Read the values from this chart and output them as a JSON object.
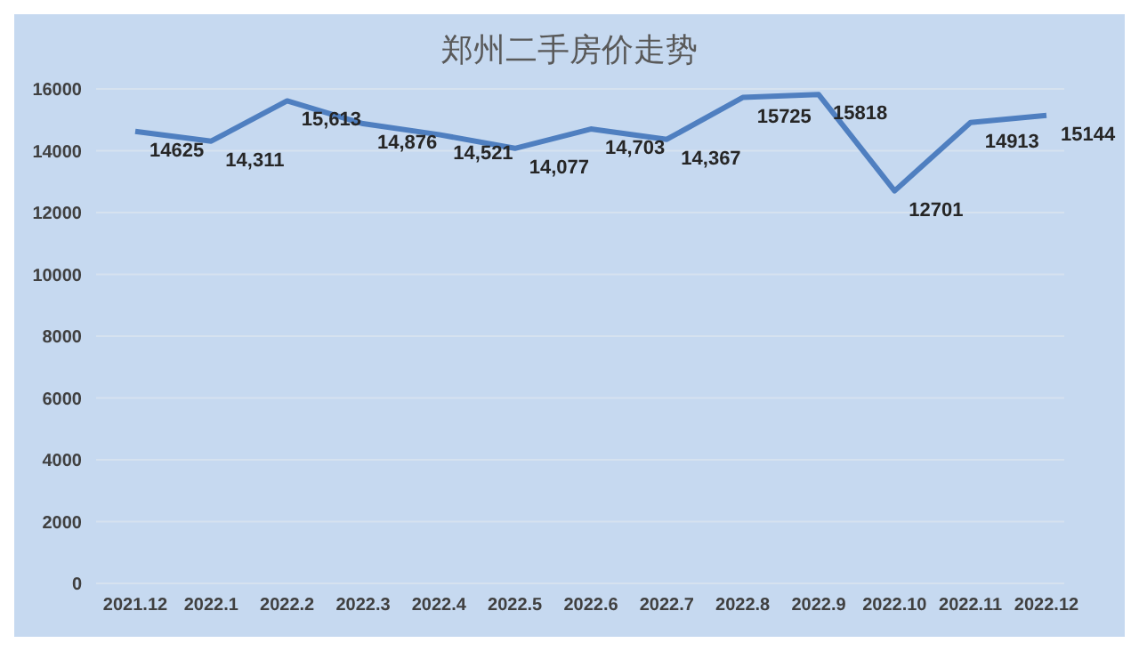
{
  "chart_data": {
    "type": "line",
    "title": "郑州二手房价走势",
    "categories": [
      "2021.12",
      "2022.1",
      "2022.2",
      "2022.3",
      "2022.4",
      "2022.5",
      "2022.6",
      "2022.7",
      "2022.8",
      "2022.9",
      "2022.10",
      "2022.11",
      "2022.12"
    ],
    "values": [
      14625,
      14311,
      15613,
      14876,
      14521,
      14077,
      14703,
      14367,
      15725,
      15818,
      12701,
      14913,
      15144
    ],
    "value_labels": [
      "14625",
      "14,311",
      "15,613",
      "14,876",
      "14,521",
      "14,077",
      "14,703",
      "14,367",
      "15725",
      "15818",
      "12701",
      "14913",
      "15144"
    ],
    "color": "#4f7fc0",
    "ylim": [
      0,
      16000
    ],
    "yticks": [
      0,
      2000,
      4000,
      6000,
      8000,
      10000,
      12000,
      14000,
      16000
    ],
    "grid": "y",
    "marker": "none",
    "line_style": "solid"
  }
}
